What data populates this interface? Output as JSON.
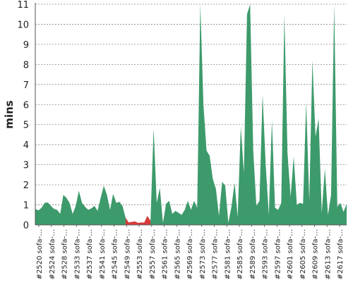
{
  "chart_data": {
    "type": "area",
    "ylabel": "mins",
    "xlabel": "",
    "title": "",
    "ylim": [
      0,
      11
    ],
    "yticks": [
      0,
      1,
      2,
      3,
      4,
      5,
      6,
      7,
      8,
      9,
      10,
      11
    ],
    "grid": true,
    "colors": {
      "series": "#3d9a6b",
      "highlight": "#d93b3b",
      "grid": "#888888",
      "axis": "#555555"
    },
    "x_tick_labels": [
      "#2520 sofa-…",
      "#2524 sofa-…",
      "#2528 sofa-…",
      "#2533 sofa-…",
      "#2537 sofa-…",
      "#2541 sofa-…",
      "#2545 sofa-…",
      "#2549 sofa-…",
      "#2553 sofa-…",
      "#2557 sofa-…",
      "#2561 sofa-…",
      "#2565 sofa-…",
      "#2569 sofa-…",
      "#2573 sofa-…",
      "#2577 sofa-…",
      "#2581 sofa-…",
      "#2585 sofa-…",
      "#2589 sofa-…",
      "#2593 sofa-…",
      "#2597 sofa-…",
      "#2601 sofa-…",
      "#2605 sofa-…",
      "#2609 sofa-…",
      "#2613 sofa-…",
      "#2617 sofa-…"
    ],
    "values": [
      0.8,
      0.72,
      0.85,
      1.1,
      1.12,
      0.95,
      0.8,
      0.75,
      0.55,
      1.5,
      1.35,
      1.1,
      0.55,
      0.95,
      1.7,
      1.1,
      0.9,
      0.75,
      0.82,
      0.95,
      0.7,
      1.35,
      1.95,
      1.5,
      0.75,
      1.55,
      1.1,
      1.15,
      0.95,
      0.35,
      0.12,
      0.15,
      0.17,
      0.1,
      0.12,
      0.12,
      0.45,
      0.2,
      4.8,
      1.1,
      1.85,
      0.1,
      1.05,
      1.2,
      0.55,
      0.7,
      0.6,
      0.5,
      0.75,
      1.2,
      0.75,
      1.2,
      0.85,
      11.2,
      6.0,
      3.7,
      3.45,
      2.3,
      1.8,
      0.45,
      2.15,
      1.95,
      0.1,
      0.9,
      2.1,
      0.4,
      4.9,
      2.6,
      10.5,
      11.2,
      3.7,
      0.95,
      1.2,
      6.5,
      3.0,
      0.5,
      5.2,
      0.85,
      0.75,
      1.1,
      10.5,
      3.6,
      1.4,
      3.4,
      1.0,
      1.1,
      1.05,
      6.1,
      1.2,
      8.2,
      4.4,
      5.3,
      0.6,
      2.8,
      0.5,
      1.5,
      11.2,
      0.9,
      1.1,
      0.65,
      1.05
    ],
    "highlight_range": [
      29,
      37
    ]
  }
}
